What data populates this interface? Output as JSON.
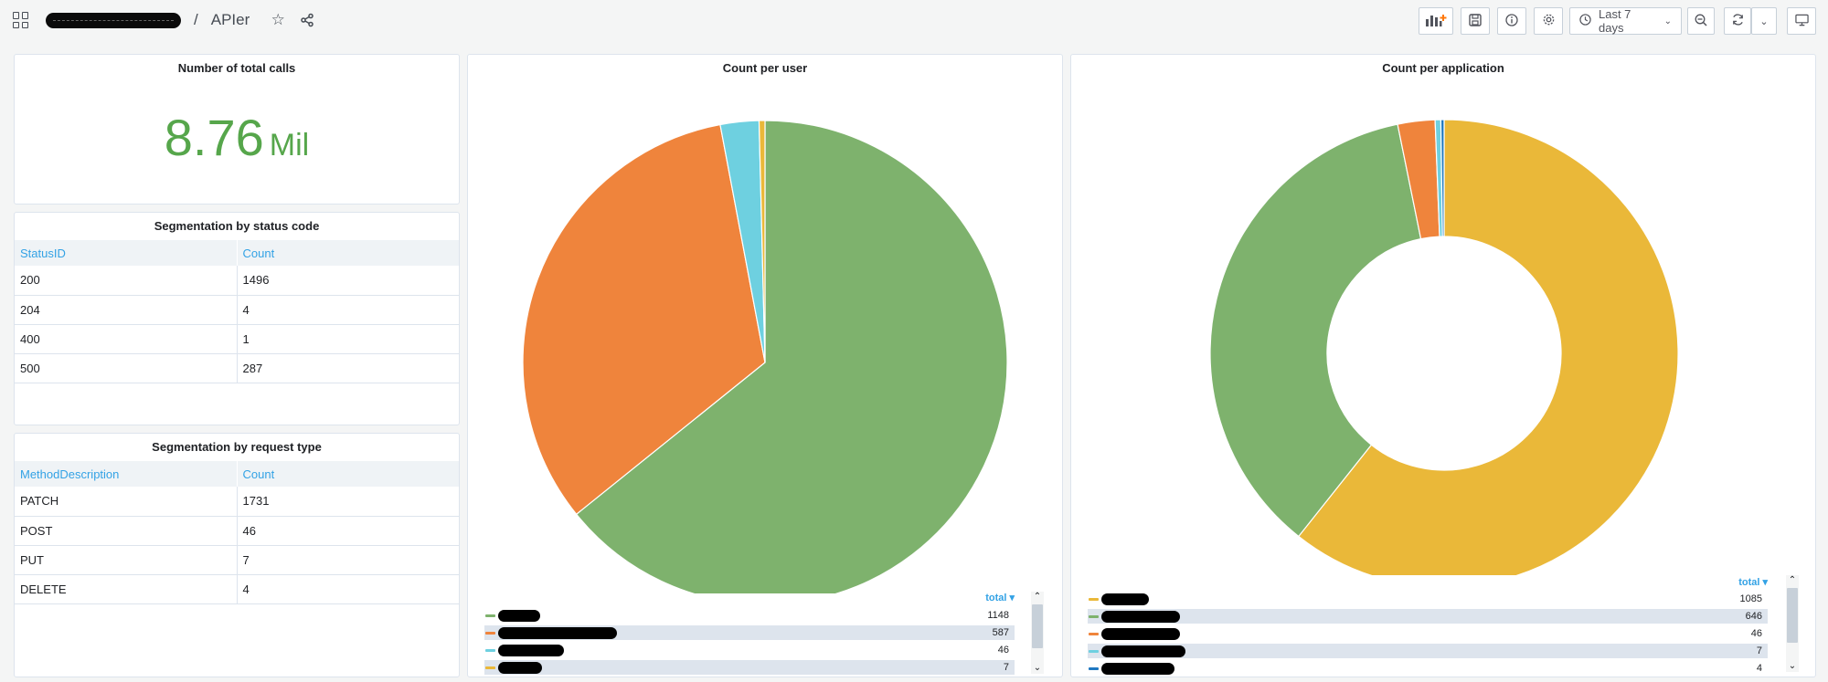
{
  "header": {
    "folder_icon": "dashboards-grid-icon",
    "separator": "/",
    "title": "APIer",
    "star_icon": "star-icon",
    "share_icon": "share-icon"
  },
  "toolbar": {
    "add_panel_icon": "add-panel-icon",
    "save_icon": "save-icon",
    "info_icon": "info-icon",
    "settings_icon": "gear-icon",
    "time_range_label": "Last 7 days",
    "zoom_out_icon": "zoom-out-icon",
    "refresh_icon": "refresh-icon",
    "tv_mode_icon": "monitor-icon",
    "accent_color": "#ff780a"
  },
  "stat_panel": {
    "title": "Number of total calls",
    "value": "8.76",
    "unit": "Mil",
    "color": "#56a64b"
  },
  "status_table": {
    "title": "Segmentation by status code",
    "columns": [
      "StatusID",
      "Count"
    ],
    "rows": [
      [
        "200",
        "1496"
      ],
      [
        "204",
        "4"
      ],
      [
        "400",
        "1"
      ],
      [
        "500",
        "287"
      ]
    ]
  },
  "method_table": {
    "title": "Segmentation by request type",
    "columns": [
      "MethodDescription",
      "Count"
    ],
    "rows": [
      [
        "PATCH",
        "1731"
      ],
      [
        "POST",
        "46"
      ],
      [
        "PUT",
        "7"
      ],
      [
        "DELETE",
        "4"
      ]
    ]
  },
  "chart_data": [
    {
      "type": "pie",
      "title": "Count per user",
      "legend_header": "total",
      "legend_placement": "bottom",
      "series": [
        {
          "value": 1148,
          "color": "#7eb26d"
        },
        {
          "value": 587,
          "color": "#ef843c"
        },
        {
          "value": 46,
          "color": "#6ed0e0"
        },
        {
          "value": 7,
          "color": "#eab839"
        }
      ],
      "legend_values": [
        "1148",
        "587",
        "46",
        "7"
      ]
    },
    {
      "type": "pie",
      "variant": "donut",
      "title": "Count per application",
      "legend_header": "total",
      "legend_placement": "bottom",
      "series": [
        {
          "value": 1085,
          "color": "#eab839"
        },
        {
          "value": 646,
          "color": "#7eb26d"
        },
        {
          "value": 46,
          "color": "#ef843c"
        },
        {
          "value": 7,
          "color": "#6ed0e0"
        },
        {
          "value": 4,
          "color": "#1f78c1"
        }
      ],
      "legend_values": [
        "1085",
        "646",
        "46",
        "7",
        "4"
      ]
    }
  ]
}
